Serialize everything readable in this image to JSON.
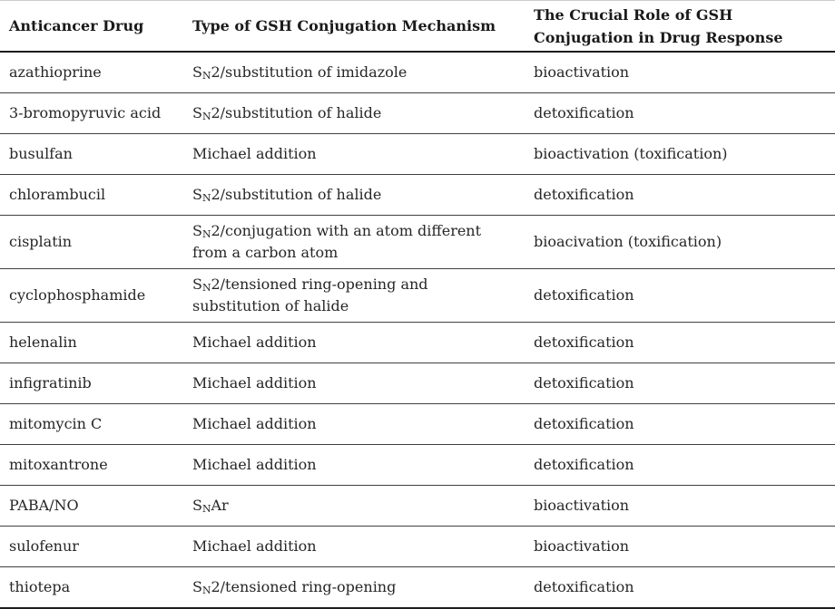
{
  "table": {
    "columns": [
      {
        "label": "Anticancer Drug"
      },
      {
        "label": "Type of GSH Conjugation Mechanism"
      },
      {
        "label": "The Crucial Role of GSH Conjugation in Drug Response"
      }
    ],
    "rows": [
      {
        "drug": "azathioprine",
        "mechanism": [
          {
            "t": "S"
          },
          {
            "t": "N",
            "sub": true
          },
          {
            "t": "2/substitution of imidazole"
          }
        ],
        "role": "bioactivation"
      },
      {
        "drug": "3-bromopyruvic acid",
        "mechanism": [
          {
            "t": "S"
          },
          {
            "t": "N",
            "sub": true
          },
          {
            "t": "2/substitution of halide"
          }
        ],
        "role": "detoxification"
      },
      {
        "drug": "busulfan",
        "mechanism": [
          {
            "t": "Michael addition"
          }
        ],
        "role": "bioactivation (toxification)"
      },
      {
        "drug": "chlorambucil",
        "mechanism": [
          {
            "t": "S"
          },
          {
            "t": "N",
            "sub": true
          },
          {
            "t": "2/substitution of halide"
          }
        ],
        "role": "detoxification"
      },
      {
        "drug": "cisplatin",
        "mechanism": [
          {
            "t": "S"
          },
          {
            "t": "N",
            "sub": true
          },
          {
            "t": "2/conjugation with an atom different from a carbon atom"
          }
        ],
        "role": "bioacivation (toxification)"
      },
      {
        "drug": "cyclophosphamide",
        "mechanism": [
          {
            "t": "S"
          },
          {
            "t": "N",
            "sub": true
          },
          {
            "t": "2/tensioned ring-opening and substitution of halide"
          }
        ],
        "role": "detoxification"
      },
      {
        "drug": "helenalin",
        "mechanism": [
          {
            "t": "Michael addition"
          }
        ],
        "role": "detoxification"
      },
      {
        "drug": "infigratinib",
        "mechanism": [
          {
            "t": "Michael addition"
          }
        ],
        "role": "detoxification"
      },
      {
        "drug": "mitomycin C",
        "mechanism": [
          {
            "t": "Michael addition"
          }
        ],
        "role": "detoxification"
      },
      {
        "drug": "mitoxantrone",
        "mechanism": [
          {
            "t": "Michael addition"
          }
        ],
        "role": "detoxification"
      },
      {
        "drug": "PABA/NO",
        "mechanism": [
          {
            "t": "S"
          },
          {
            "t": "N",
            "sub": true
          },
          {
            "t": "Ar"
          }
        ],
        "role": "bioactivation"
      },
      {
        "drug": "sulofenur",
        "mechanism": [
          {
            "t": "Michael addition"
          }
        ],
        "role": "bioactivation"
      },
      {
        "drug": "thiotepa",
        "mechanism": [
          {
            "t": "S"
          },
          {
            "t": "N",
            "sub": true
          },
          {
            "t": "2/tensioned ring-opening"
          }
        ],
        "role": "detoxification"
      }
    ]
  },
  "colors": {
    "background": "#ffffff",
    "text": "#262626",
    "heading": "#1a1a1a",
    "rule_heavy": "#1c1c1c",
    "rule_light": "#404040"
  }
}
